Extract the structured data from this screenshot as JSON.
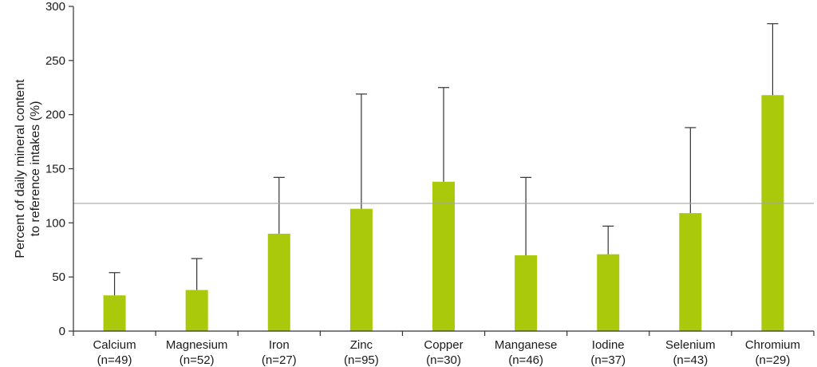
{
  "chart_data": {
    "type": "bar",
    "ylabel_lines": [
      "Percent of daily mineral content",
      "to reference intakes (%)"
    ],
    "ylim": [
      0,
      300
    ],
    "yticks": [
      0,
      50,
      100,
      150,
      200,
      250,
      300
    ],
    "categories": [
      {
        "name": "Calcium",
        "n": "(n=49)"
      },
      {
        "name": "Magnesium",
        "n": "(n=52)"
      },
      {
        "name": "Iron",
        "n": "(n=27)"
      },
      {
        "name": "Zinc",
        "n": "(n=95)"
      },
      {
        "name": "Copper",
        "n": "(n=30)"
      },
      {
        "name": "Manganese",
        "n": "(n=46)"
      },
      {
        "name": "Iodine",
        "n": "(n=37)"
      },
      {
        "name": "Selenium",
        "n": "(n=43)"
      },
      {
        "name": "Chromium",
        "n": "(n=29)"
      }
    ],
    "values": [
      33,
      38,
      90,
      113,
      138,
      70,
      71,
      109,
      218
    ],
    "error_upper": [
      54,
      67,
      142,
      219,
      225,
      142,
      97,
      188,
      284
    ],
    "reference_line": 118,
    "grid": false,
    "legend": "none",
    "colors": {
      "bar": "#aac90a",
      "error": "#333333",
      "reference": "#a6a6a6",
      "axis": "#333333"
    }
  }
}
